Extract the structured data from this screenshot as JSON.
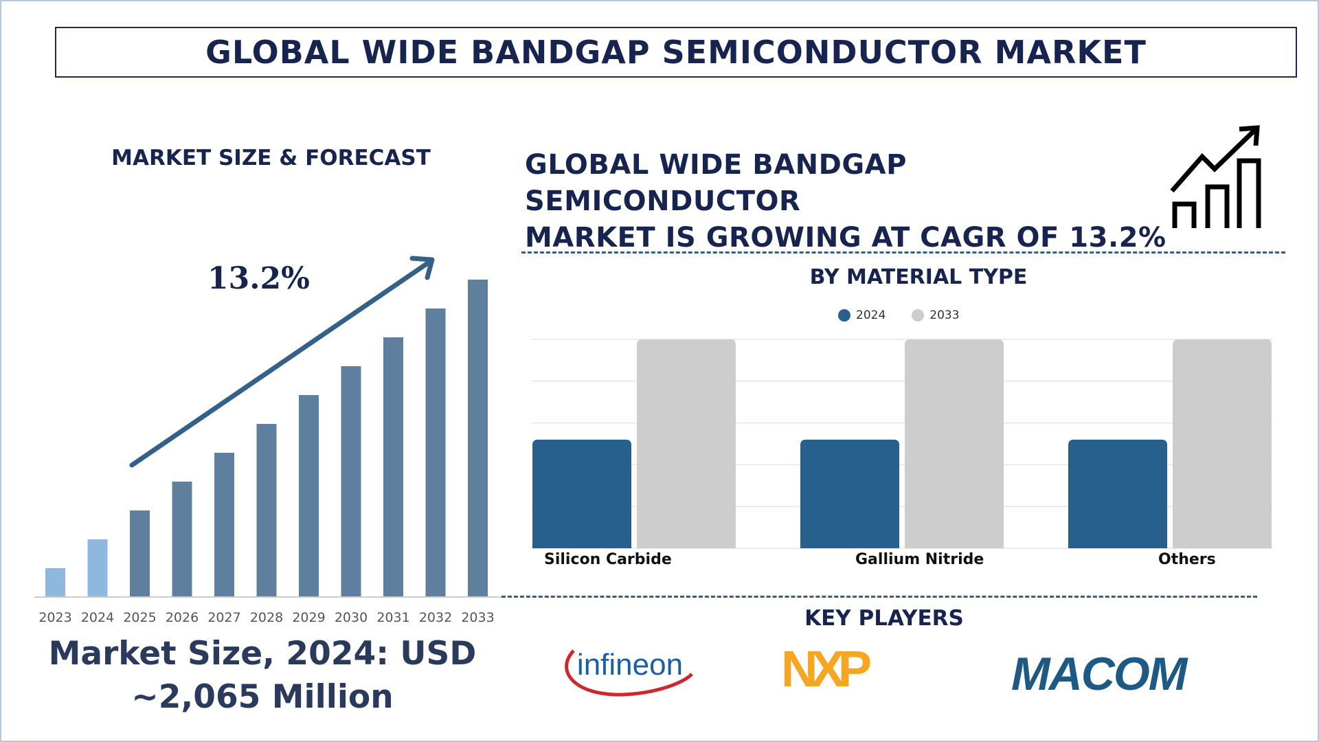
{
  "title": "GLOBAL WIDE BANDGAP SEMICONDUCTOR MARKET",
  "left": {
    "heading": "MARKET SIZE & FORECAST",
    "cagr_label": "13.2%",
    "market_size_line1": "Market Size, 2024: USD",
    "market_size_line2": "~2,065 Million"
  },
  "right": {
    "headline_line1": "GLOBAL WIDE BANDGAP SEMICONDUCTOR",
    "headline_line2": "MARKET IS GROWING AT CAGR OF 13.2%",
    "material_title": "BY MATERIAL TYPE",
    "key_players_title": "KEY PLAYERS",
    "key_players": [
      {
        "name": "infineon",
        "color": "#1b5ea8"
      },
      {
        "name": "NXP",
        "color": "#f6a623"
      },
      {
        "name": "MACOM",
        "color": "#1c5a84"
      }
    ]
  },
  "colors": {
    "navy": "#16244f",
    "bar_light": "#8fb8df",
    "bar_dark": "#5f7f9e",
    "arrow": "#356189",
    "series_2024": "#27608d",
    "series_2033": "#cdcdcd"
  },
  "chart_data": [
    {
      "type": "bar",
      "title": "MARKET SIZE & FORECAST",
      "categories": [
        "2023",
        "2024",
        "2025",
        "2026",
        "2027",
        "2028",
        "2029",
        "2030",
        "2031",
        "2032",
        "2033"
      ],
      "values": [
        1.0,
        2.0,
        3.0,
        4.0,
        5.0,
        6.0,
        7.0,
        8.0,
        9.0,
        10.0,
        11.0
      ],
      "highlight": [
        "2023",
        "2024"
      ],
      "annotation": "13.2%",
      "xlabel": "",
      "ylabel": "",
      "ylim": [
        0,
        11
      ]
    },
    {
      "type": "bar",
      "title": "BY MATERIAL TYPE",
      "categories": [
        "Silicon Carbide",
        "Gallium Nitride",
        "Others"
      ],
      "series": [
        {
          "name": "2024",
          "values": [
            52,
            52,
            52
          ]
        },
        {
          "name": "2033",
          "values": [
            100,
            100,
            100
          ]
        }
      ],
      "ylim": [
        0,
        100
      ],
      "grid": true,
      "legend": "top-center"
    }
  ]
}
